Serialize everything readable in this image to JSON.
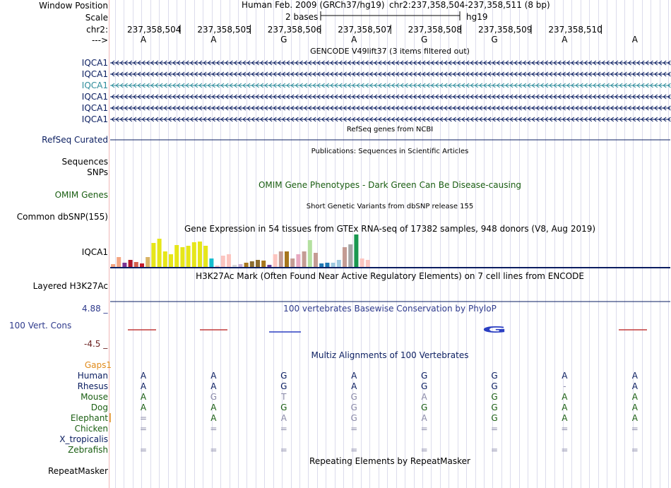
{
  "header": {
    "window_position_label": "Window Position",
    "scale_label": "Scale",
    "chrom_label": "chr2:",
    "arrow_label": "--->",
    "assembly": "Human Feb. 2009 (GRCh37/hg19)",
    "position": "chr2:237,358,504-237,358,511 (8 bp)",
    "scale_text": "2 bases",
    "scale_db": "hg19",
    "ruler_positions": [
      "237,358,504",
      "237,358,505",
      "237,358,506",
      "237,358,507",
      "237,358,508",
      "237,358,509",
      "237,358,510"
    ],
    "sequence": [
      "A",
      "A",
      "G",
      "A",
      "G",
      "G",
      "A",
      "A"
    ]
  },
  "gencode": {
    "title": "GENCODE V49lift37 (3 items filtered out)",
    "labels": [
      "IQCA1",
      "IQCA1",
      "IQCA1",
      "IQCA1",
      "IQCA1",
      "IQCA1"
    ],
    "highlight_index": 2
  },
  "refseq": {
    "label": "RefSeq Curated",
    "title": "RefSeq genes from NCBI"
  },
  "publications": {
    "title": "Publications: Sequences in Scientific Articles",
    "label": "Sequences"
  },
  "snps": {
    "label": "SNPs"
  },
  "omim": {
    "label": "OMIM Genes",
    "title": "OMIM Gene Phenotypes - Dark Green Can Be Disease-causing"
  },
  "dbsnp": {
    "label": "Common dbSNP(155)",
    "title": "Short Genetic Variants from dbSNP release 155"
  },
  "gtex": {
    "title": "Gene Expression in 54 tissues from GTEx RNA-seq of 17382 samples, 948 donors (V8, Aug 2019)",
    "label": "IQCA1"
  },
  "h3k27ac": {
    "title": "H3K27Ac Mark (Often Found Near Active Regulatory Elements) on 7 cell lines from ENCODE",
    "label": "Layered H3K27Ac"
  },
  "phylop": {
    "title": "100 vertebrates Basewise Conservation by PhyloP",
    "label": "100 Vert. Cons",
    "max_label": "4.88 _",
    "min_label": "-4.5 _",
    "highlight_letter": "G"
  },
  "multiz": {
    "title": "Multiz Alignments of 100 Vertebrates",
    "gaps_label": "Gaps1",
    "species": [
      {
        "name": "Human",
        "bases": [
          "A",
          "A",
          "G",
          "A",
          "G",
          "G",
          "A",
          "A"
        ]
      },
      {
        "name": "Rhesus",
        "bases": [
          "A",
          "A",
          "G",
          "A",
          "G",
          "G",
          "-",
          "A"
        ]
      },
      {
        "name": "Mouse",
        "bases": [
          "A",
          "G",
          "T",
          "G",
          "A",
          "G",
          "A",
          "A"
        ]
      },
      {
        "name": "Dog",
        "bases": [
          "A",
          "A",
          "G",
          "G",
          "G",
          "G",
          "A",
          "A"
        ]
      },
      {
        "name": "Elephant",
        "bases": [
          "=",
          "A",
          "A",
          "G",
          "A",
          "G",
          "A",
          "A"
        ]
      },
      {
        "name": "Chicken",
        "bases": [
          "=",
          "=",
          "=",
          "=",
          "=",
          "=",
          "=",
          "="
        ]
      },
      {
        "name": "X_tropicalis",
        "bases": [
          "",
          "",
          "",
          "",
          "",
          "",
          "",
          ""
        ]
      },
      {
        "name": "Zebrafish",
        "bases": [
          "=",
          "=",
          "=",
          "=",
          "=",
          "=",
          "=",
          "="
        ]
      }
    ]
  },
  "repeatmasker": {
    "title": "Repeating Elements by RepeatMasker",
    "label": "RepeatMasker"
  },
  "colors": {
    "navy": "#0a1d60",
    "teal": "#2d8c9b",
    "dark_green": "#1a5e12",
    "maroon": "#6b2222"
  }
}
